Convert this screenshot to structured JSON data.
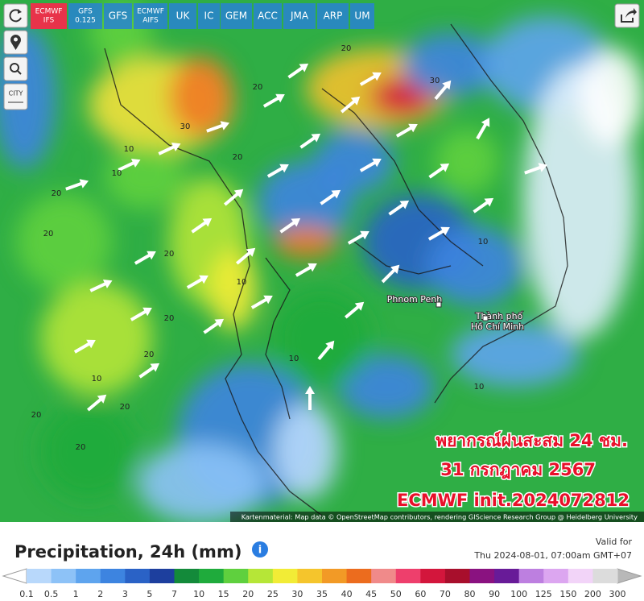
{
  "tabs": [
    [
      "ECMWF",
      "IFS"
    ],
    [
      "GFS",
      "0.125"
    ],
    [
      "GFS"
    ],
    [
      "ECMWF",
      "AIFS"
    ],
    [
      "UK"
    ],
    [
      "IC"
    ],
    [
      "GEM"
    ],
    [
      "ACC"
    ],
    [
      "JMA"
    ],
    [
      "ARP"
    ],
    [
      "UM"
    ]
  ],
  "side_buttons": {
    "city": "CITY"
  },
  "map_labels": {
    "places": [
      "Phnom Penh",
      "Thành phố",
      "Hồ Chí Minh"
    ],
    "contours": [
      "10",
      "20",
      "30",
      "20",
      "10",
      "20",
      "20",
      "10",
      "20",
      "20",
      "10",
      "30",
      "20",
      "10",
      "20",
      "20",
      "10",
      "20",
      "20",
      "10"
    ]
  },
  "overlay": {
    "line1": "พยากรณ์ฝนสะสม 24 ชม.",
    "line2": "31 กรกฎาคม 2567",
    "line3": "ECMWF init.2024072812"
  },
  "attribution": "Kartenmaterial: Map data © OpenStreetMap contributors, rendering GIScience Research Group @ Heidelberg University",
  "legend": {
    "title": "Precipitation, 24h (mm)",
    "valid_label": "Valid for",
    "valid_time": "Thu 2024-08-01, 07:00am GMT+07",
    "ticks": [
      0.1,
      0.5,
      1,
      2,
      3,
      5,
      7,
      10,
      15,
      20,
      25,
      30,
      35,
      40,
      45,
      50,
      60,
      70,
      80,
      90,
      100,
      125,
      150,
      200,
      300
    ],
    "colors": [
      "#b8d8fb",
      "#8dc2f7",
      "#5ea4ee",
      "#3d84e0",
      "#2a62c6",
      "#1d3f9e",
      "#138a3a",
      "#1fab3c",
      "#5fd03e",
      "#b6e637",
      "#f2ec36",
      "#f5c52c",
      "#f29a26",
      "#ec6c1e",
      "#f08a8a",
      "#ee3f6c",
      "#d3163c",
      "#a80f2c",
      "#8a1280",
      "#681b98",
      "#bd7fe0",
      "#dca6f0",
      "#f2d4f8",
      "#dcdcdc"
    ]
  }
}
